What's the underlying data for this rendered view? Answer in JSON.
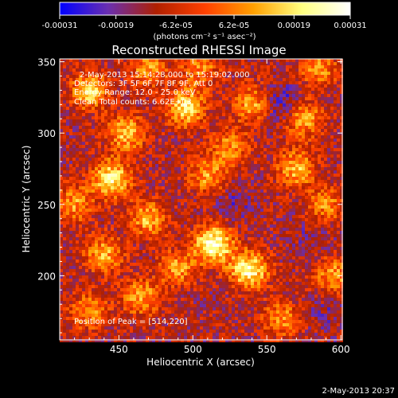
{
  "chart_data": {
    "type": "heatmap",
    "title": "Reconstructed RHESSI Image",
    "xlabel": "Heliocentric X (arcsec)",
    "ylabel": "Heliocentric Y (arcsec)",
    "xlim": [
      410,
      601
    ],
    "ylim": [
      155,
      352
    ],
    "xticks": [
      450,
      500,
      550,
      600
    ],
    "yticks": [
      200,
      250,
      300,
      350
    ],
    "grid": false,
    "colorbar": {
      "vmin": -0.00031,
      "vmax": 0.00031,
      "tick_values": [
        -0.00031,
        -0.00019,
        -6.2e-05,
        6.2e-05,
        0.00019,
        0.00031
      ],
      "tick_labels": [
        "-0.00031",
        "-0.00019",
        "-6.2e-05",
        "6.2e-05",
        "0.00019",
        "0.00031"
      ],
      "unit_label": "(photons cm⁻² s⁻¹ asec⁻²)",
      "colors": [
        "#0000ff",
        "#6a2fb0",
        "#b02000",
        "#ff4000",
        "#ffa000",
        "#ffff80",
        "#ffffff"
      ]
    },
    "annotations": [
      "2-May-2013 15:14:28.000 to 15:19:02.000",
      "Detectors: 3F 5F 6F 7F 8F 9F, Att 0",
      "Energy Range: 12.0 - 25.0 keV",
      "Clean     Total counts: 6.62E+03"
    ],
    "peak_label": "Position of Peak = [514,220]",
    "peak": [
      514,
      220
    ],
    "hotspots": [
      {
        "x": 514,
        "y": 222,
        "value": 0.00031
      },
      {
        "x": 538,
        "y": 204,
        "value": 0.00026
      },
      {
        "x": 445,
        "y": 268,
        "value": 0.00024
      },
      {
        "x": 495,
        "y": 318,
        "value": 0.00022
      },
      {
        "x": 430,
        "y": 330,
        "value": 0.00018
      },
      {
        "x": 455,
        "y": 300,
        "value": 0.00016
      },
      {
        "x": 470,
        "y": 240,
        "value": 0.00014
      },
      {
        "x": 570,
        "y": 275,
        "value": 0.00015
      },
      {
        "x": 540,
        "y": 320,
        "value": 0.00012
      },
      {
        "x": 575,
        "y": 310,
        "value": 0.00013
      },
      {
        "x": 440,
        "y": 215,
        "value": 0.00013
      },
      {
        "x": 465,
        "y": 185,
        "value": 0.00012
      },
      {
        "x": 490,
        "y": 205,
        "value": 0.00011
      },
      {
        "x": 510,
        "y": 270,
        "value": 0.0001
      },
      {
        "x": 525,
        "y": 290,
        "value": 9e-05
      },
      {
        "x": 595,
        "y": 200,
        "value": 0.00011
      },
      {
        "x": 430,
        "y": 175,
        "value": 0.0001
      },
      {
        "x": 560,
        "y": 170,
        "value": 9e-05
      },
      {
        "x": 590,
        "y": 250,
        "value": 8e-05
      },
      {
        "x": 470,
        "y": 345,
        "value": 0.0001
      },
      {
        "x": 505,
        "y": 345,
        "value": 8e-05
      },
      {
        "x": 585,
        "y": 345,
        "value": 9e-05
      },
      {
        "x": 420,
        "y": 250,
        "value": 0.00011
      }
    ],
    "coldspots": [
      {
        "x": 560,
        "y": 320,
        "value": -0.00025
      },
      {
        "x": 528,
        "y": 250,
        "value": -0.00018
      },
      {
        "x": 580,
        "y": 225,
        "value": -0.00016
      },
      {
        "x": 590,
        "y": 175,
        "value": -0.00017
      },
      {
        "x": 500,
        "y": 185,
        "value": -0.00012
      },
      {
        "x": 560,
        "y": 255,
        "value": -0.00011
      },
      {
        "x": 545,
        "y": 345,
        "value": -9e-05
      }
    ]
  },
  "timestamp": "2-May-2013 20:37"
}
